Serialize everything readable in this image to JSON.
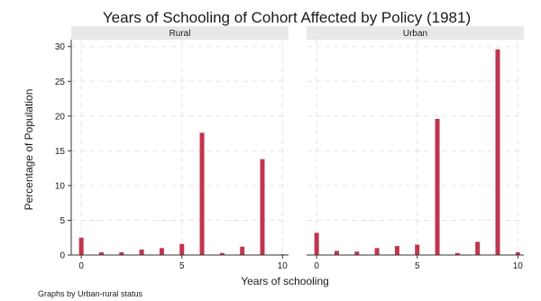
{
  "chart_data": {
    "type": "bar",
    "title": "Years of Schooling of Cohort Affected by Policy (1981)",
    "xlabel": "Years of schooling",
    "ylabel": "Percentage of Population",
    "note": "Graphs by Urban-rural status",
    "xlim": [
      -0.5,
      10.3
    ],
    "ylim": [
      0,
      31
    ],
    "x_ticks": [
      0,
      5,
      10
    ],
    "y_ticks": [
      0,
      5,
      10,
      15,
      20,
      25,
      30
    ],
    "grid": true,
    "bar_color": "#c0354f",
    "panel_header_color": "#e8e8e8",
    "panels": [
      {
        "name": "Rural",
        "x": [
          0,
          1,
          2,
          3,
          4,
          5,
          6,
          7,
          8,
          9,
          10
        ],
        "values": [
          2.5,
          0.4,
          0.4,
          0.8,
          1.0,
          1.6,
          17.6,
          0.3,
          1.2,
          13.8,
          0.1
        ]
      },
      {
        "name": "Urban",
        "x": [
          0,
          1,
          2,
          3,
          4,
          5,
          6,
          7,
          8,
          9,
          10
        ],
        "values": [
          3.2,
          0.6,
          0.5,
          1.0,
          1.3,
          1.5,
          19.6,
          0.3,
          1.9,
          29.6,
          0.4
        ]
      }
    ]
  }
}
